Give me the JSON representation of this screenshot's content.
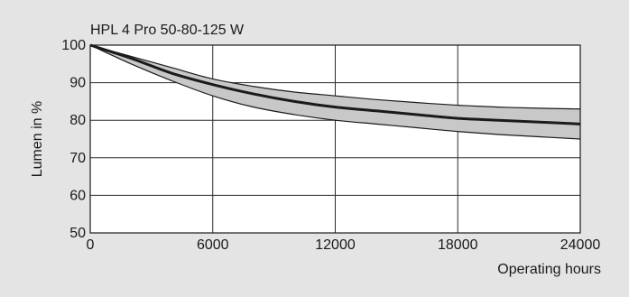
{
  "chart_data": {
    "type": "line",
    "title": "HPL 4 Pro 50-80-125 W",
    "xlabel": "Operating hours",
    "ylabel": "Lumen in %",
    "xlim": [
      0,
      24000
    ],
    "ylim": [
      50,
      100
    ],
    "xticks": [
      0,
      6000,
      12000,
      18000,
      24000
    ],
    "yticks": [
      50,
      60,
      70,
      80,
      90,
      100
    ],
    "grid": true,
    "colors": {
      "background": "#e4e4e4",
      "plot_area": "#ffffff",
      "band_fill": "#c8c8c8",
      "line": "#1a1a1a"
    },
    "x": [
      0,
      2000,
      4000,
      6000,
      8000,
      10000,
      12000,
      14000,
      16000,
      18000,
      20000,
      22000,
      24000
    ],
    "series": [
      {
        "role": "upper",
        "values": [
          100,
          97,
          94,
          91,
          89,
          87.5,
          86.5,
          85.5,
          84.7,
          84,
          83.5,
          83.2,
          83
        ]
      },
      {
        "role": "mean",
        "values": [
          100,
          96.5,
          92.5,
          89.5,
          87,
          85,
          83.5,
          82.5,
          81.5,
          80.5,
          80,
          79.5,
          79
        ]
      },
      {
        "role": "lower",
        "values": [
          100,
          95,
          90.5,
          86.5,
          83.5,
          81.5,
          80,
          79,
          78,
          77,
          76.2,
          75.6,
          75
        ]
      }
    ]
  }
}
